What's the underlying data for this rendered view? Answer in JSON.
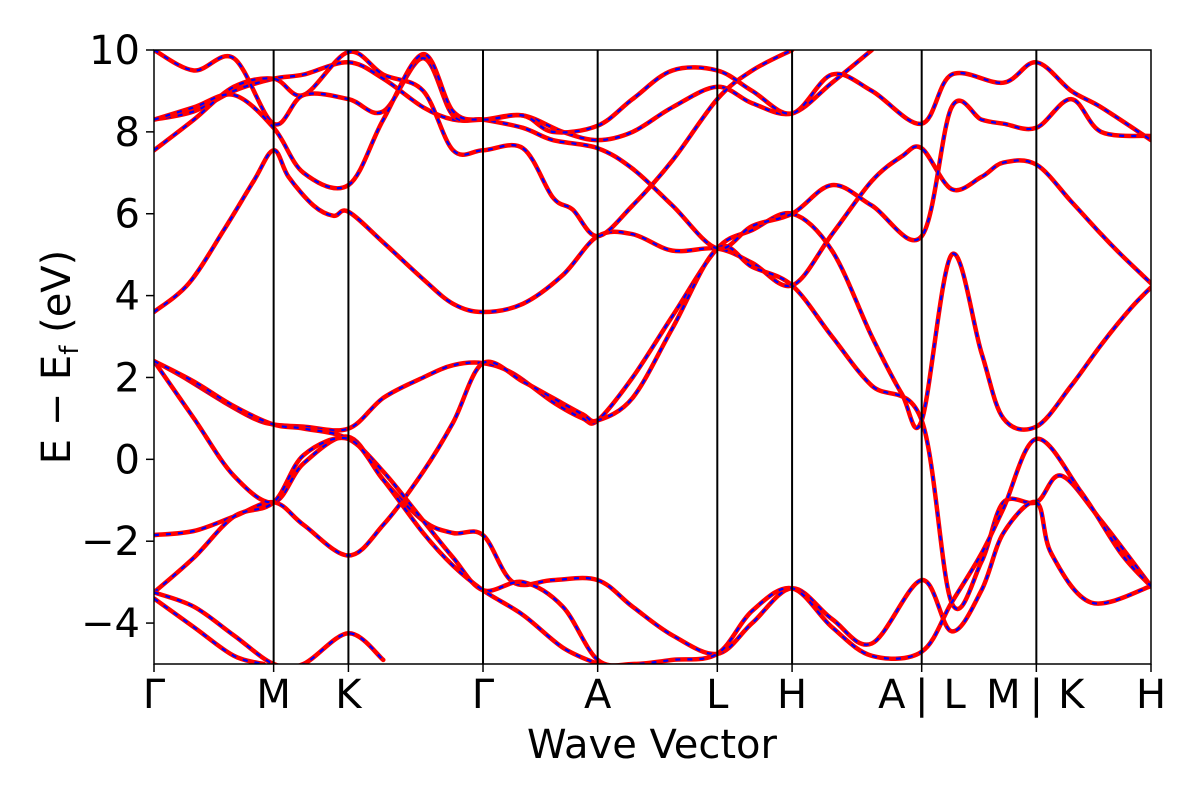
{
  "chart_data": {
    "type": "line",
    "xlabel": "Wave Vector",
    "ylabel": "E − E",
    "ylabel_sub": "f",
    "ylabel_unit": "(eV)",
    "ylim": [
      -5,
      10
    ],
    "yticks": [
      -4,
      -2,
      0,
      2,
      4,
      6,
      8,
      10
    ],
    "ytick_labels": [
      "−4",
      "−2",
      "0",
      "2",
      "4",
      "6",
      "8",
      "10"
    ],
    "xlim": [
      0,
      10
    ],
    "kpoints": [
      {
        "label": "Γ",
        "x": 0
      },
      {
        "label": "M",
        "x": 1.2
      },
      {
        "label": "K",
        "x": 1.95
      },
      {
        "label": "Γ",
        "x": 3.3
      },
      {
        "label": "A",
        "x": 4.45
      },
      {
        "label": "L",
        "x": 5.65
      },
      {
        "label": "H",
        "x": 6.4
      },
      {
        "label": "A | L",
        "x": 7.7
      },
      {
        "label": "M | K",
        "x": 8.85
      },
      {
        "label": "H",
        "x": 10
      }
    ],
    "label_text_x": [
      {
        "label": "Γ",
        "x": 0
      },
      {
        "label": "M",
        "x": 1.2
      },
      {
        "label": "K",
        "x": 1.95
      },
      {
        "label": "Γ",
        "x": 3.3
      },
      {
        "label": "A",
        "x": 4.45
      },
      {
        "label": "L",
        "x": 5.65
      },
      {
        "label": "H",
        "x": 6.4
      },
      {
        "label": "A",
        "x": 7.4
      },
      {
        "label": "|",
        "x": 7.7
      },
      {
        "label": "L",
        "x": 8.03
      },
      {
        "label": "M",
        "x": 8.52
      },
      {
        "label": "|",
        "x": 8.85
      },
      {
        "label": "K",
        "x": 9.2
      },
      {
        "label": "H",
        "x": 10
      }
    ],
    "series_styles": [
      {
        "color": "#ff0000",
        "style": "solid"
      },
      {
        "color": "#0000ff",
        "style": "dashed"
      }
    ],
    "bands": [
      [
        [
          0,
          3.6
        ],
        [
          0.35,
          4.3
        ],
        [
          0.7,
          5.6
        ],
        [
          1.0,
          6.8
        ],
        [
          1.2,
          7.55
        ],
        [
          1.35,
          6.9
        ],
        [
          1.6,
          6.2
        ],
        [
          1.8,
          5.95
        ],
        [
          1.95,
          6.05
        ],
        [
          2.3,
          5.3
        ],
        [
          2.7,
          4.4
        ],
        [
          3.0,
          3.8
        ],
        [
          3.3,
          3.6
        ],
        [
          3.7,
          3.8
        ],
        [
          4.1,
          4.5
        ],
        [
          4.45,
          5.45
        ],
        [
          4.8,
          5.5
        ],
        [
          5.2,
          5.1
        ],
        [
          5.65,
          5.15
        ],
        [
          6.0,
          4.8
        ],
        [
          6.4,
          4.25
        ],
        [
          6.8,
          5.5
        ],
        [
          7.2,
          6.8
        ],
        [
          7.5,
          7.4
        ],
        [
          7.7,
          7.6
        ],
        [
          8.0,
          6.6
        ],
        [
          8.3,
          6.9
        ],
        [
          8.52,
          7.25
        ],
        [
          8.85,
          7.2
        ],
        [
          9.2,
          6.3
        ],
        [
          9.5,
          5.5
        ],
        [
          9.7,
          5.0
        ],
        [
          10,
          4.3
        ]
      ],
      [
        [
          0,
          2.4
        ],
        [
          0.3,
          2.0
        ],
        [
          0.7,
          1.4
        ],
        [
          1.0,
          1.0
        ],
        [
          1.2,
          0.85
        ],
        [
          1.5,
          0.8
        ],
        [
          1.95,
          0.75
        ],
        [
          2.3,
          1.5
        ],
        [
          2.7,
          2.0
        ],
        [
          3.0,
          2.3
        ],
        [
          3.3,
          2.35
        ],
        [
          3.6,
          2.1
        ],
        [
          4.0,
          1.4
        ],
        [
          4.3,
          1.0
        ],
        [
          4.45,
          0.95
        ],
        [
          4.8,
          2.0
        ],
        [
          5.2,
          3.5
        ],
        [
          5.65,
          5.15
        ],
        [
          6.0,
          5.6
        ],
        [
          6.4,
          6.0
        ],
        [
          6.8,
          5.1
        ],
        [
          7.2,
          3.0
        ],
        [
          7.5,
          1.6
        ],
        [
          7.7,
          0.95
        ],
        [
          8.0,
          5.0
        ],
        [
          8.3,
          2.6
        ],
        [
          8.52,
          1.0
        ],
        [
          8.85,
          0.8
        ],
        [
          9.2,
          1.8
        ],
        [
          9.5,
          2.8
        ],
        [
          9.8,
          3.7
        ],
        [
          10,
          4.2
        ]
      ],
      [
        [
          0,
          -1.85
        ],
        [
          0.4,
          -1.75
        ],
        [
          0.8,
          -1.4
        ],
        [
          1.2,
          -1.05
        ],
        [
          1.5,
          -1.6
        ],
        [
          1.95,
          -2.35
        ],
        [
          2.3,
          -1.6
        ],
        [
          2.7,
          -0.3
        ],
        [
          3.0,
          0.9
        ],
        [
          3.3,
          2.35
        ],
        [
          3.7,
          1.9
        ],
        [
          4.0,
          1.5
        ],
        [
          4.3,
          1.1
        ],
        [
          4.45,
          0.95
        ],
        [
          4.8,
          1.5
        ],
        [
          5.2,
          3.2
        ],
        [
          5.65,
          5.15
        ],
        [
          6.0,
          4.7
        ],
        [
          6.4,
          4.25
        ],
        [
          6.8,
          3.0
        ],
        [
          7.2,
          1.8
        ],
        [
          7.7,
          0.95
        ],
        [
          8.0,
          -3.5
        ],
        [
          8.3,
          -2.5
        ],
        [
          8.52,
          -1.05
        ],
        [
          8.85,
          -1.05
        ],
        [
          9.1,
          -0.4
        ],
        [
          9.5,
          -1.5
        ],
        [
          10,
          -3.1
        ]
      ],
      [
        [
          0,
          2.4
        ],
        [
          0.4,
          1.0
        ],
        [
          0.8,
          -0.4
        ],
        [
          1.2,
          -1.05
        ],
        [
          1.5,
          -0.1
        ],
        [
          1.95,
          0.55
        ],
        [
          2.3,
          -0.5
        ],
        [
          2.7,
          -1.5
        ],
        [
          3.0,
          -1.8
        ],
        [
          3.3,
          -1.85
        ],
        [
          3.6,
          -3.0
        ],
        [
          4.0,
          -2.95
        ],
        [
          4.45,
          -2.95
        ],
        [
          4.8,
          -3.6
        ],
        [
          5.2,
          -4.3
        ],
        [
          5.65,
          -4.75
        ],
        [
          6.0,
          -4.0
        ],
        [
          6.4,
          -3.15
        ],
        [
          6.8,
          -3.9
        ],
        [
          7.2,
          -4.5
        ],
        [
          7.7,
          -2.95
        ],
        [
          8.0,
          -4.2
        ],
        [
          8.3,
          -3.2
        ],
        [
          8.52,
          -1.8
        ],
        [
          8.85,
          -1.05
        ],
        [
          9.0,
          -2.3
        ],
        [
          9.4,
          -3.5
        ],
        [
          10,
          -3.1
        ]
      ],
      [
        [
          0,
          2.4
        ],
        [
          0.4,
          1.9
        ],
        [
          0.8,
          1.3
        ],
        [
          1.2,
          0.85
        ],
        [
          1.5,
          0.75
        ],
        [
          1.95,
          0.5
        ],
        [
          2.3,
          -0.3
        ],
        [
          2.7,
          -1.5
        ],
        [
          3.0,
          -2.4
        ],
        [
          3.3,
          -3.2
        ],
        [
          3.7,
          -3.0
        ],
        [
          4.1,
          -3.6
        ],
        [
          4.45,
          -4.9
        ],
        [
          4.8,
          -5.0
        ],
        [
          5.2,
          -4.9
        ],
        [
          5.65,
          -4.75
        ],
        [
          6.0,
          -3.7
        ],
        [
          6.4,
          -3.15
        ],
        [
          6.8,
          -4.1
        ],
        [
          7.2,
          -4.8
        ],
        [
          7.7,
          -4.7
        ],
        [
          8.0,
          -3.5
        ],
        [
          8.3,
          -2.3
        ],
        [
          8.52,
          -1.2
        ],
        [
          8.85,
          0.5
        ],
        [
          9.3,
          -0.8
        ],
        [
          9.7,
          -2.3
        ],
        [
          10,
          -3.1
        ]
      ],
      [
        [
          0,
          -3.25
        ],
        [
          0.4,
          -2.4
        ],
        [
          0.8,
          -1.4
        ],
        [
          1.2,
          -1.05
        ],
        [
          1.5,
          0.1
        ],
        [
          1.95,
          0.5
        ],
        [
          2.3,
          -0.5
        ],
        [
          2.7,
          -1.8
        ],
        [
          3.0,
          -2.6
        ],
        [
          3.3,
          -3.2
        ],
        [
          3.7,
          -3.8
        ],
        [
          4.1,
          -4.6
        ],
        [
          4.45,
          -5.0
        ]
      ],
      [
        [
          0,
          -3.25
        ],
        [
          0.4,
          -3.6
        ],
        [
          0.8,
          -4.3
        ],
        [
          1.2,
          -5.0
        ],
        [
          1.5,
          -5.0
        ],
        [
          1.95,
          -4.25
        ],
        [
          2.3,
          -4.9
        ]
      ],
      [
        [
          0,
          -3.4
        ],
        [
          0.4,
          -4.1
        ],
        [
          0.8,
          -4.8
        ],
        [
          1.1,
          -5.0
        ]
      ],
      [
        [
          0,
          8.3
        ],
        [
          0.4,
          8.5
        ],
        [
          0.8,
          9.0
        ],
        [
          1.2,
          9.3
        ],
        [
          1.5,
          9.4
        ],
        [
          1.95,
          9.7
        ],
        [
          2.3,
          9.3
        ],
        [
          2.7,
          8.6
        ],
        [
          3.0,
          8.3
        ],
        [
          3.3,
          8.3
        ],
        [
          3.7,
          8.4
        ],
        [
          4.1,
          8.0
        ],
        [
          4.45,
          7.8
        ],
        [
          4.8,
          8.0
        ],
        [
          5.2,
          8.6
        ],
        [
          5.65,
          9.1
        ],
        [
          6.0,
          8.7
        ],
        [
          6.4,
          8.45
        ],
        [
          6.8,
          9.2
        ],
        [
          7.2,
          10.0
        ]
      ],
      [
        [
          0,
          7.55
        ],
        [
          0.4,
          8.3
        ],
        [
          0.8,
          9.1
        ],
        [
          1.2,
          9.3
        ],
        [
          1.5,
          8.9
        ],
        [
          1.95,
          9.95
        ],
        [
          2.3,
          9.4
        ],
        [
          2.7,
          9.0
        ],
        [
          3.0,
          7.55
        ],
        [
          3.3,
          7.55
        ],
        [
          3.7,
          7.6
        ],
        [
          4.0,
          6.4
        ],
        [
          4.2,
          6.1
        ],
        [
          4.45,
          5.45
        ],
        [
          4.8,
          6.2
        ],
        [
          5.2,
          7.3
        ],
        [
          5.65,
          8.8
        ],
        [
          6.0,
          9.5
        ],
        [
          6.4,
          10.0
        ]
      ],
      [
        [
          0,
          10.0
        ],
        [
          0.4,
          9.5
        ],
        [
          0.8,
          9.8
        ],
        [
          1.2,
          8.2
        ],
        [
          1.5,
          8.9
        ],
        [
          1.95,
          8.8
        ],
        [
          2.3,
          8.5
        ],
        [
          2.7,
          9.8
        ],
        [
          3.0,
          8.4
        ],
        [
          3.3,
          8.3
        ],
        [
          3.7,
          8.1
        ],
        [
          4.0,
          7.8
        ],
        [
          4.45,
          7.6
        ],
        [
          4.8,
          7.1
        ],
        [
          5.2,
          6.2
        ],
        [
          5.65,
          5.15
        ],
        [
          6.0,
          5.7
        ],
        [
          6.4,
          6.0
        ],
        [
          6.8,
          6.7
        ],
        [
          7.2,
          6.2
        ],
        [
          7.7,
          5.45
        ],
        [
          8.0,
          8.6
        ],
        [
          8.3,
          8.3
        ],
        [
          8.52,
          8.2
        ],
        [
          8.85,
          8.1
        ],
        [
          9.2,
          8.8
        ],
        [
          9.5,
          8.0
        ],
        [
          10,
          7.9
        ]
      ],
      [
        [
          0,
          8.3
        ],
        [
          0.4,
          8.6
        ],
        [
          0.8,
          8.9
        ],
        [
          1.2,
          8.1
        ],
        [
          1.5,
          7.0
        ],
        [
          1.95,
          6.7
        ],
        [
          2.3,
          8.3
        ],
        [
          2.7,
          9.9
        ],
        [
          3.0,
          8.5
        ],
        [
          3.3,
          8.3
        ],
        [
          3.7,
          8.4
        ],
        [
          4.0,
          8.0
        ],
        [
          4.45,
          8.15
        ],
        [
          4.8,
          8.8
        ],
        [
          5.2,
          9.5
        ],
        [
          5.65,
          9.5
        ],
        [
          6.0,
          9.0
        ],
        [
          6.4,
          8.45
        ],
        [
          6.8,
          9.4
        ],
        [
          7.2,
          9.0
        ],
        [
          7.7,
          8.2
        ],
        [
          8.0,
          9.4
        ],
        [
          8.52,
          9.2
        ],
        [
          8.85,
          9.7
        ],
        [
          9.2,
          9.0
        ],
        [
          9.5,
          8.6
        ],
        [
          10,
          7.8
        ]
      ]
    ]
  }
}
